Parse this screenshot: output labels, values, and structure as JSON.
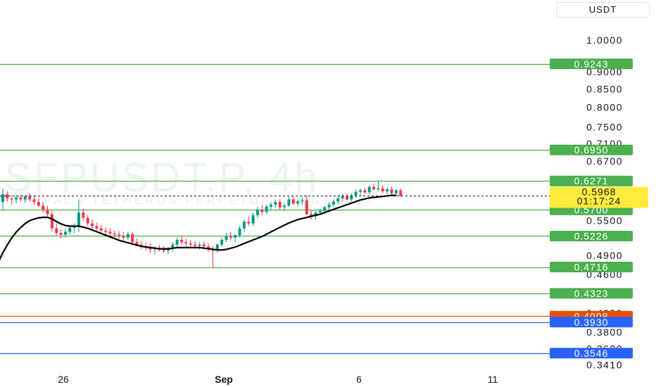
{
  "currency_label": "USDT",
  "chart_data": {
    "type": "candlestick",
    "watermark": {
      "symbol": "SFPUSDT.P, 4h",
      "description": "SAFEPAL / TETHERUS PERPETUAL CONTRACT"
    },
    "y_axis": {
      "scale": "log",
      "range": [
        0.336,
        1.09
      ],
      "ticks": [
        "1.0000",
        "0.9000",
        "0.8500",
        "0.8000",
        "0.7500",
        "0.7100",
        "0.6700",
        "0.5500",
        "0.4900",
        "0.4600",
        "0.4050",
        "0.3800",
        "0.3600",
        "0.3410"
      ]
    },
    "x_axis": {
      "ticks": [
        {
          "label": "26",
          "bold": false
        },
        {
          "label": "Sep",
          "bold": true
        },
        {
          "label": "6",
          "bold": false
        },
        {
          "label": "11",
          "bold": false
        }
      ]
    },
    "levels": [
      {
        "label": "0.9243",
        "value": 0.9243,
        "color": "#4caf50"
      },
      {
        "label": "0.6950",
        "value": 0.695,
        "color": "#4caf50"
      },
      {
        "label": "0.6271",
        "value": 0.6271,
        "color": "#4caf50"
      },
      {
        "label": "0.5700",
        "value": 0.57,
        "color": "#4caf50"
      },
      {
        "label": "0.5226",
        "value": 0.5226,
        "color": "#4caf50"
      },
      {
        "label": "0.4716",
        "value": 0.4716,
        "color": "#4caf50"
      },
      {
        "label": "0.4323",
        "value": 0.4323,
        "color": "#4caf50"
      },
      {
        "label": "0.4008",
        "value": 0.4008,
        "color": "#e65100"
      },
      {
        "label": "0.3930",
        "value": 0.393,
        "color": "#2962ff"
      },
      {
        "label": "0.3546",
        "value": 0.3546,
        "color": "#2962ff"
      }
    ],
    "current_price": {
      "label": "0.5968",
      "value": 0.5968,
      "countdown": "01:17:24",
      "color": "#ffeb3b"
    },
    "candles": [
      [
        0.585,
        0.612,
        0.57,
        0.6
      ],
      [
        0.6,
        0.606,
        0.586,
        0.592
      ],
      [
        0.592,
        0.598,
        0.58,
        0.59
      ],
      [
        0.59,
        0.6,
        0.582,
        0.594
      ],
      [
        0.594,
        0.6,
        0.586,
        0.59
      ],
      [
        0.59,
        0.598,
        0.584,
        0.596
      ],
      [
        0.596,
        0.602,
        0.586,
        0.59
      ],
      [
        0.59,
        0.596,
        0.58,
        0.585
      ],
      [
        0.585,
        0.592,
        0.575,
        0.578
      ],
      [
        0.578,
        0.585,
        0.565,
        0.57
      ],
      [
        0.57,
        0.578,
        0.558,
        0.562
      ],
      [
        0.562,
        0.568,
        0.53,
        0.536
      ],
      [
        0.536,
        0.545,
        0.524,
        0.528
      ],
      [
        0.528,
        0.534,
        0.518,
        0.525
      ],
      [
        0.525,
        0.535,
        0.52,
        0.53
      ],
      [
        0.53,
        0.54,
        0.525,
        0.537
      ],
      [
        0.537,
        0.545,
        0.528,
        0.54
      ],
      [
        0.54,
        0.59,
        0.53,
        0.565
      ],
      [
        0.565,
        0.572,
        0.55,
        0.555
      ],
      [
        0.555,
        0.56,
        0.54,
        0.545
      ],
      [
        0.545,
        0.552,
        0.535,
        0.54
      ],
      [
        0.54,
        0.546,
        0.53,
        0.536
      ],
      [
        0.536,
        0.542,
        0.528,
        0.532
      ],
      [
        0.532,
        0.538,
        0.525,
        0.53
      ],
      [
        0.53,
        0.536,
        0.522,
        0.527
      ],
      [
        0.527,
        0.533,
        0.52,
        0.525
      ],
      [
        0.525,
        0.531,
        0.518,
        0.523
      ],
      [
        0.523,
        0.529,
        0.515,
        0.52
      ],
      [
        0.52,
        0.53,
        0.516,
        0.526
      ],
      [
        0.526,
        0.53,
        0.51,
        0.512
      ],
      [
        0.512,
        0.518,
        0.505,
        0.508
      ],
      [
        0.508,
        0.514,
        0.5,
        0.505
      ],
      [
        0.505,
        0.512,
        0.498,
        0.504
      ],
      [
        0.504,
        0.51,
        0.494,
        0.5
      ],
      [
        0.5,
        0.506,
        0.492,
        0.502
      ],
      [
        0.502,
        0.508,
        0.496,
        0.5
      ],
      [
        0.5,
        0.505,
        0.494,
        0.498
      ],
      [
        0.498,
        0.504,
        0.492,
        0.501
      ],
      [
        0.501,
        0.512,
        0.497,
        0.508
      ],
      [
        0.508,
        0.52,
        0.504,
        0.516
      ],
      [
        0.516,
        0.522,
        0.508,
        0.512
      ],
      [
        0.512,
        0.518,
        0.505,
        0.51
      ],
      [
        0.51,
        0.516,
        0.504,
        0.508
      ],
      [
        0.508,
        0.514,
        0.502,
        0.506
      ],
      [
        0.506,
        0.512,
        0.5,
        0.508
      ],
      [
        0.508,
        0.514,
        0.5,
        0.505
      ],
      [
        0.505,
        0.51,
        0.496,
        0.5
      ],
      [
        0.5,
        0.506,
        0.47,
        0.498
      ],
      [
        0.498,
        0.51,
        0.494,
        0.508
      ],
      [
        0.508,
        0.52,
        0.504,
        0.516
      ],
      [
        0.516,
        0.528,
        0.512,
        0.522
      ],
      [
        0.522,
        0.53,
        0.515,
        0.52
      ],
      [
        0.52,
        0.526,
        0.512,
        0.524
      ],
      [
        0.524,
        0.54,
        0.52,
        0.536
      ],
      [
        0.536,
        0.552,
        0.53,
        0.548
      ],
      [
        0.548,
        0.558,
        0.54,
        0.545
      ],
      [
        0.545,
        0.565,
        0.54,
        0.56
      ],
      [
        0.56,
        0.576,
        0.555,
        0.57
      ],
      [
        0.57,
        0.58,
        0.56,
        0.566
      ],
      [
        0.566,
        0.58,
        0.562,
        0.576
      ],
      [
        0.576,
        0.585,
        0.568,
        0.58
      ],
      [
        0.58,
        0.59,
        0.574,
        0.585
      ],
      [
        0.585,
        0.59,
        0.57,
        0.575
      ],
      [
        0.575,
        0.582,
        0.568,
        0.578
      ],
      [
        0.578,
        0.595,
        0.575,
        0.59
      ],
      [
        0.59,
        0.596,
        0.578,
        0.582
      ],
      [
        0.582,
        0.59,
        0.576,
        0.586
      ],
      [
        0.586,
        0.594,
        0.58,
        0.588
      ],
      [
        0.588,
        0.598,
        0.56,
        0.562
      ],
      [
        0.562,
        0.57,
        0.552,
        0.558
      ],
      [
        0.558,
        0.568,
        0.552,
        0.565
      ],
      [
        0.565,
        0.572,
        0.56,
        0.568
      ],
      [
        0.568,
        0.578,
        0.562,
        0.575
      ],
      [
        0.575,
        0.585,
        0.57,
        0.58
      ],
      [
        0.58,
        0.59,
        0.575,
        0.586
      ],
      [
        0.586,
        0.596,
        0.58,
        0.592
      ],
      [
        0.592,
        0.6,
        0.586,
        0.596
      ],
      [
        0.596,
        0.602,
        0.588,
        0.59
      ],
      [
        0.59,
        0.602,
        0.586,
        0.598
      ],
      [
        0.598,
        0.61,
        0.594,
        0.605
      ],
      [
        0.605,
        0.612,
        0.598,
        0.608
      ],
      [
        0.608,
        0.614,
        0.6,
        0.604
      ],
      [
        0.604,
        0.618,
        0.6,
        0.615
      ],
      [
        0.615,
        0.622,
        0.608,
        0.61
      ],
      [
        0.61,
        0.628,
        0.606,
        0.612
      ],
      [
        0.612,
        0.618,
        0.602,
        0.606
      ],
      [
        0.606,
        0.614,
        0.6,
        0.61
      ],
      [
        0.61,
        0.616,
        0.598,
        0.602
      ],
      [
        0.602,
        0.61,
        0.596,
        0.608
      ],
      [
        0.608,
        0.612,
        0.594,
        0.597
      ]
    ],
    "ma": [
      0.48,
      0.495,
      0.508,
      0.52,
      0.53,
      0.538,
      0.545,
      0.55,
      0.553,
      0.555,
      0.556,
      0.556,
      0.553,
      0.548,
      0.544,
      0.541,
      0.54,
      0.54,
      0.54,
      0.538,
      0.536,
      0.533,
      0.53,
      0.527,
      0.524,
      0.521,
      0.518,
      0.515,
      0.513,
      0.511,
      0.509,
      0.507,
      0.505,
      0.504,
      0.503,
      0.502,
      0.501,
      0.501,
      0.501,
      0.502,
      0.503,
      0.503,
      0.503,
      0.503,
      0.503,
      0.503,
      0.502,
      0.501,
      0.5,
      0.499,
      0.499,
      0.5,
      0.502,
      0.504,
      0.507,
      0.51,
      0.513,
      0.516,
      0.519,
      0.522,
      0.526,
      0.53,
      0.534,
      0.538,
      0.542,
      0.546,
      0.549,
      0.552,
      0.554,
      0.556,
      0.558,
      0.56,
      0.562,
      0.565,
      0.568,
      0.571,
      0.574,
      0.577,
      0.58,
      0.583,
      0.586,
      0.589,
      0.591,
      0.593,
      0.594,
      0.595,
      0.596,
      0.597,
      0.598,
      0.598
    ]
  }
}
